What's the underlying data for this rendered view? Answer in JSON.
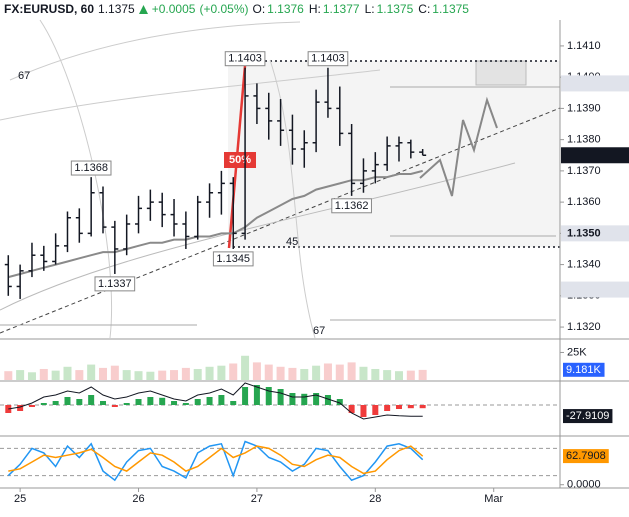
{
  "chart_data": [
    {
      "type": "ohlc",
      "title": "FX:EURUSD, 60",
      "last": 1.1375,
      "change": {
        "value": 0.0005,
        "label": "+0.0005"
      },
      "change_pct": {
        "value": 0.05,
        "label": "(+0.05%)"
      },
      "quote": [
        {
          "key": "O:",
          "value": 1.1376
        },
        {
          "key": "H:",
          "value": 1.1377
        },
        {
          "key": "L:",
          "value": 1.1375
        },
        {
          "key": "C:",
          "value": 1.1375
        }
      ],
      "up_color": "#26a650",
      "color": "#131722",
      "x": [
        24.9,
        25.0,
        25.1,
        25.2,
        25.3,
        25.4,
        25.5,
        25.6,
        25.7,
        25.8,
        25.9,
        26.0,
        26.1,
        26.2,
        26.3,
        26.4,
        26.5,
        26.6,
        26.7,
        26.8,
        26.9,
        27.0,
        27.1,
        27.2,
        27.3,
        27.4,
        27.5,
        27.6,
        27.7,
        27.8,
        27.9,
        28.0,
        28.1,
        28.2,
        28.3,
        28.4
      ],
      "open": [
        1.134,
        1.1333,
        1.1338,
        1.1343,
        1.1341,
        1.1346,
        1.1355,
        1.135,
        1.1363,
        1.1352,
        1.1345,
        1.1353,
        1.1358,
        1.136,
        1.1356,
        1.1353,
        1.1349,
        1.136,
        1.1363,
        1.1366,
        1.135,
        1.1394,
        1.139,
        1.1386,
        1.1383,
        1.1377,
        1.1379,
        1.1392,
        1.139,
        1.1382,
        1.1366,
        1.137,
        1.1372,
        1.1378,
        1.1379,
        1.1376
      ],
      "high": [
        1.1343,
        1.134,
        1.1347,
        1.1346,
        1.135,
        1.1357,
        1.1358,
        1.1368,
        1.1365,
        1.1354,
        1.1356,
        1.1362,
        1.1364,
        1.1363,
        1.1361,
        1.1357,
        1.1362,
        1.1366,
        1.137,
        1.1368,
        1.1403,
        1.1398,
        1.1395,
        1.1393,
        1.1388,
        1.1383,
        1.1396,
        1.1403,
        1.1397,
        1.1385,
        1.1374,
        1.1376,
        1.1381,
        1.1381,
        1.138,
        1.1377
      ],
      "low": [
        1.133,
        1.1329,
        1.1336,
        1.1338,
        1.134,
        1.1344,
        1.1347,
        1.1349,
        1.135,
        1.1337,
        1.1343,
        1.135,
        1.1354,
        1.1352,
        1.1349,
        1.1345,
        1.1348,
        1.1355,
        1.1356,
        1.1345,
        1.1348,
        1.1385,
        1.138,
        1.1378,
        1.1372,
        1.1371,
        1.1376,
        1.1387,
        1.1378,
        1.1362,
        1.1363,
        1.1366,
        1.137,
        1.1373,
        1.1374,
        1.1375
      ],
      "close": [
        1.1333,
        1.1338,
        1.1343,
        1.1341,
        1.1346,
        1.1355,
        1.135,
        1.1363,
        1.1352,
        1.1345,
        1.1353,
        1.1358,
        1.136,
        1.1356,
        1.1353,
        1.1349,
        1.136,
        1.1363,
        1.1366,
        1.135,
        1.1394,
        1.139,
        1.1386,
        1.1383,
        1.1377,
        1.1379,
        1.1392,
        1.139,
        1.1382,
        1.1366,
        1.137,
        1.1372,
        1.1378,
        1.1379,
        1.1376,
        1.1375
      ],
      "moving_average": {
        "color": "#8a8a8a",
        "values": [
          1.1336,
          1.1337,
          1.1338,
          1.1339,
          1.134,
          1.1341,
          1.1342,
          1.1343,
          1.1344,
          1.1344,
          1.1345,
          1.1346,
          1.1347,
          1.1347,
          1.1348,
          1.1348,
          1.1349,
          1.1349,
          1.135,
          1.135,
          1.1352,
          1.1355,
          1.1357,
          1.1359,
          1.1361,
          1.1362,
          1.1364,
          1.1365,
          1.1366,
          1.1367,
          1.1367,
          1.1368,
          1.1368,
          1.1369,
          1.1369,
          1.137
        ]
      },
      "xlim": [
        24.83,
        29.56
      ],
      "xticks": [
        25,
        26,
        27,
        28,
        {
          "value": 29,
          "label": "Mar"
        }
      ],
      "ylim": [
        1.13165,
        1.14183
      ],
      "yticks": [
        {
          "value": 1.132,
          "label": "1.1320"
        },
        {
          "value": 1.133,
          "label": "1.1330"
        },
        {
          "value": 1.134,
          "label": "1.1340"
        },
        {
          "value": 1.135,
          "label": "1.1350"
        },
        {
          "value": 1.136,
          "label": "1.1360"
        },
        {
          "value": 1.137,
          "label": "1.1370"
        },
        {
          "value": 1.138,
          "label": "1.1380"
        },
        {
          "value": 1.139,
          "label": "1.1390"
        },
        {
          "value": 1.14,
          "label": "1.1400"
        },
        {
          "value": 1.141,
          "label": "1.1410"
        }
      ],
      "price_markers": [
        {
          "value": 1.1398,
          "color": "#e0e3eb"
        },
        {
          "value": 1.1375,
          "color": "#131722"
        },
        {
          "value": 1.135,
          "label": "1.1350",
          "color": "#e0e3eb"
        },
        {
          "value": 1.1332,
          "color": "#e0e3eb"
        }
      ],
      "annotations": [
        {
          "x": 26.9,
          "y": 1.1403
        },
        {
          "x": 27.6,
          "y": 1.1403
        },
        {
          "x": 25.6,
          "y": 1.1368
        },
        {
          "x": 26.8,
          "y": 1.1345
        },
        {
          "x": 25.8,
          "y": 1.1337
        },
        {
          "x": 27.8,
          "y": 1.1362
        }
      ],
      "drawing_labels": [
        "50%",
        "67",
        "45",
        "67"
      ]
    },
    {
      "type": "bar",
      "values": [
        8000,
        9000,
        7000,
        10000,
        8500,
        12000,
        9000,
        14000,
        11000,
        13000,
        9000,
        8000,
        7500,
        8500,
        9000,
        11000,
        10000,
        12000,
        13000,
        15000,
        22000,
        16000,
        14000,
        12000,
        11000,
        10000,
        13000,
        15000,
        14000,
        16000,
        12000,
        10000,
        9000,
        8000,
        8500,
        9181
      ],
      "value_labels": [
        null,
        null,
        null,
        null,
        null,
        null,
        null,
        null,
        null,
        null,
        null,
        null,
        null,
        null,
        null,
        null,
        null,
        null,
        null,
        null,
        null,
        null,
        null,
        null,
        null,
        null,
        null,
        null,
        null,
        null,
        null,
        null,
        null,
        null,
        null,
        "9.181K"
      ],
      "up_color": "#c8e6c9",
      "down_color": "#f8cdcd",
      "label_color": "#2962ff",
      "ylim": [
        0,
        34500
      ],
      "yticks": [
        {
          "value": 25000,
          "label": "25K"
        }
      ]
    },
    {
      "type": "histogram",
      "series": [
        {
          "up_color": "#26a650",
          "down_color": "#ef3b3b",
          "values": [
            -20,
            -15,
            -5,
            5,
            10,
            20,
            15,
            25,
            10,
            -5,
            5,
            15,
            20,
            18,
            10,
            5,
            15,
            20,
            25,
            10,
            45,
            50,
            45,
            40,
            30,
            28,
            30,
            25,
            15,
            -20,
            -30,
            -25,
            -15,
            -10,
            -8,
            -8
          ]
        },
        {
          "color": "#131722",
          "values": [
            -10,
            -5,
            5,
            20,
            25,
            35,
            30,
            45,
            25,
            15,
            20,
            30,
            35,
            25,
            15,
            10,
            25,
            30,
            40,
            25,
            55,
            45,
            35,
            30,
            20,
            20,
            25,
            15,
            5,
            -20,
            -35,
            -30,
            -25,
            -27,
            -28,
            -27.9109
          ]
        }
      ],
      "ylim": [
        -75,
        57.5
      ],
      "levels": [
        0
      ]
    },
    {
      "type": "line",
      "series": [
        {
          "color": "#2196f3",
          "values": [
            20,
            45,
            80,
            70,
            40,
            85,
            60,
            90,
            30,
            10,
            50,
            75,
            80,
            40,
            30,
            15,
            70,
            85,
            90,
            20,
            95,
            85,
            60,
            50,
            30,
            45,
            80,
            75,
            40,
            10,
            20,
            50,
            85,
            90,
            80,
            55
          ]
        },
        {
          "color": "#ff9800",
          "values": [
            30,
            35,
            50,
            65,
            60,
            65,
            70,
            78,
            60,
            40,
            30,
            50,
            70,
            65,
            50,
            30,
            40,
            60,
            80,
            60,
            70,
            85,
            80,
            65,
            45,
            40,
            55,
            65,
            60,
            40,
            25,
            30,
            55,
            75,
            85,
            62.7908
          ]
        }
      ],
      "ylim": [
        -5,
        105
      ],
      "yticks": [
        {
          "value": 0,
          "label": "0.0000"
        }
      ],
      "levels": [
        20,
        80
      ]
    }
  ]
}
